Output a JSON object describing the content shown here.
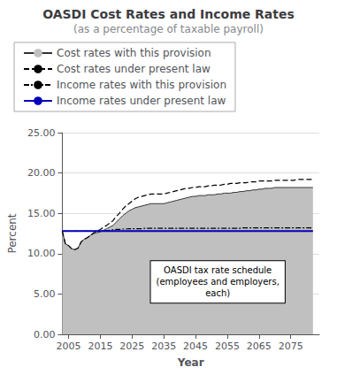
{
  "chart_data": {
    "type": "line",
    "title": "OASDI Cost Rates and Income Rates",
    "subtitle": "(as a percentage of taxable payroll)",
    "x_label": "Year",
    "y_label": "Percent",
    "xlim": [
      2003,
      2084
    ],
    "xticks": [
      2005,
      2015,
      2025,
      2035,
      2045,
      2055,
      2065,
      2075
    ],
    "ylim": [
      0,
      25
    ],
    "yticks": [
      {
        "value": 0,
        "label": "0.00"
      },
      {
        "value": 5,
        "label": "5.00"
      },
      {
        "value": 10,
        "label": "10.00"
      },
      {
        "value": 15,
        "label": "15.00"
      },
      {
        "value": 20,
        "label": "20.00"
      },
      {
        "value": 25,
        "label": "25.00"
      }
    ],
    "grid": true,
    "legend": "top",
    "x": [
      2003,
      2004,
      2005,
      2006,
      2007,
      2008,
      2009,
      2010,
      2011,
      2012,
      2013,
      2014,
      2015,
      2016,
      2017,
      2018,
      2019,
      2020,
      2021,
      2022,
      2023,
      2024,
      2025,
      2026,
      2027,
      2028,
      2029,
      2030,
      2031,
      2032,
      2033,
      2034,
      2035,
      2036,
      2037,
      2038,
      2039,
      2040,
      2041,
      2042,
      2043,
      2044,
      2045,
      2046,
      2047,
      2048,
      2049,
      2050,
      2051,
      2052,
      2053,
      2054,
      2055,
      2056,
      2057,
      2058,
      2059,
      2060,
      2061,
      2062,
      2063,
      2064,
      2065,
      2066,
      2067,
      2068,
      2069,
      2070,
      2071,
      2072,
      2073,
      2074,
      2075,
      2076,
      2077,
      2078,
      2079,
      2080,
      2081,
      2082
    ],
    "series": [
      {
        "name": "Cost rates with this provision",
        "type": "area",
        "color": "#c0c0c0",
        "line_style": "solid",
        "values": [
          12.8,
          11.2,
          11.0,
          10.6,
          10.5,
          10.7,
          11.5,
          11.8,
          12.0,
          12.3,
          12.5,
          12.6,
          12.7,
          12.9,
          13.1,
          13.3,
          13.5,
          13.9,
          14.3,
          14.7,
          15.0,
          15.3,
          15.5,
          15.7,
          15.8,
          15.9,
          16.0,
          16.1,
          16.2,
          16.2,
          16.2,
          16.2,
          16.2,
          16.3,
          16.4,
          16.5,
          16.6,
          16.7,
          16.8,
          16.9,
          17.0,
          17.1,
          17.1,
          17.2,
          17.2,
          17.2,
          17.3,
          17.3,
          17.3,
          17.4,
          17.4,
          17.5,
          17.5,
          17.5,
          17.6,
          17.6,
          17.7,
          17.7,
          17.8,
          17.8,
          17.9,
          17.9,
          18.0,
          18.0,
          18.1,
          18.1,
          18.1,
          18.2,
          18.2,
          18.2,
          18.2,
          18.2,
          18.2,
          18.2,
          18.2,
          18.2,
          18.2,
          18.2,
          18.2,
          18.2
        ]
      },
      {
        "name": "Cost rates under present law",
        "type": "line",
        "color": "#000000",
        "line_style": "dashed",
        "values": [
          12.8,
          11.2,
          11.0,
          10.6,
          10.5,
          10.7,
          11.5,
          11.8,
          12.0,
          12.3,
          12.6,
          12.8,
          13.0,
          13.3,
          13.5,
          13.8,
          14.1,
          14.6,
          15.0,
          15.5,
          15.9,
          16.2,
          16.5,
          16.8,
          17.0,
          17.1,
          17.2,
          17.3,
          17.4,
          17.4,
          17.4,
          17.4,
          17.4,
          17.5,
          17.6,
          17.7,
          17.8,
          17.9,
          18.0,
          18.1,
          18.1,
          18.2,
          18.2,
          18.3,
          18.3,
          18.3,
          18.4,
          18.4,
          18.5,
          18.5,
          18.5,
          18.6,
          18.6,
          18.7,
          18.7,
          18.7,
          18.8,
          18.8,
          18.8,
          18.9,
          18.9,
          18.9,
          19.0,
          19.0,
          19.0,
          19.0,
          19.0,
          19.1,
          19.1,
          19.1,
          19.1,
          19.1,
          19.1,
          19.1,
          19.2,
          19.2,
          19.2,
          19.2,
          19.2,
          19.2
        ]
      },
      {
        "name": "Income rates with this provision",
        "type": "line",
        "color": "#000000",
        "line_style": "dashdot",
        "values": [
          12.8,
          12.8,
          12.8,
          12.8,
          12.8,
          12.8,
          12.8,
          12.8,
          12.8,
          12.8,
          12.8,
          12.8,
          12.8,
          12.8,
          12.85,
          12.9,
          12.95,
          13.0,
          13.0,
          13.05,
          13.05,
          13.1,
          13.1,
          13.1,
          13.1,
          13.1,
          13.15,
          13.15,
          13.15,
          13.15,
          13.15,
          13.15,
          13.15,
          13.15,
          13.15,
          13.15,
          13.15,
          13.15,
          13.15,
          13.15,
          13.15,
          13.15,
          13.15,
          13.15,
          13.15,
          13.15,
          13.15,
          13.15,
          13.15,
          13.15,
          13.15,
          13.15,
          13.15,
          13.15,
          13.15,
          13.15,
          13.15,
          13.2,
          13.2,
          13.2,
          13.2,
          13.2,
          13.2,
          13.2,
          13.2,
          13.2,
          13.2,
          13.2,
          13.2,
          13.2,
          13.2,
          13.2,
          13.2,
          13.2,
          13.2,
          13.2,
          13.2,
          13.2,
          13.2,
          13.2
        ]
      },
      {
        "name": "Income rates under present law",
        "type": "line",
        "color": "#0000bb",
        "line_style": "solid",
        "values": [
          12.8,
          12.8,
          12.8,
          12.8,
          12.8,
          12.8,
          12.8,
          12.8,
          12.8,
          12.8,
          12.8,
          12.8,
          12.8,
          12.8,
          12.8,
          12.8,
          12.8,
          12.8,
          12.8,
          12.8,
          12.8,
          12.8,
          12.8,
          12.8,
          12.8,
          12.8,
          12.8,
          12.8,
          12.8,
          12.8,
          12.8,
          12.8,
          12.8,
          12.8,
          12.8,
          12.8,
          12.8,
          12.8,
          12.8,
          12.8,
          12.8,
          12.8,
          12.8,
          12.8,
          12.8,
          12.8,
          12.8,
          12.8,
          12.8,
          12.8,
          12.8,
          12.8,
          12.8,
          12.8,
          12.8,
          12.8,
          12.8,
          12.8,
          12.8,
          12.8,
          12.8,
          12.8,
          12.8,
          12.8,
          12.8,
          12.8,
          12.8,
          12.8,
          12.8,
          12.8,
          12.8,
          12.8,
          12.8,
          12.8,
          12.8,
          12.8,
          12.8,
          12.8,
          12.8,
          12.8
        ]
      }
    ],
    "annotations": [
      {
        "text": "OASDI tax rate schedule\n(employees and employers,\neach)",
        "x": 2052,
        "y": 6.5
      }
    ]
  }
}
